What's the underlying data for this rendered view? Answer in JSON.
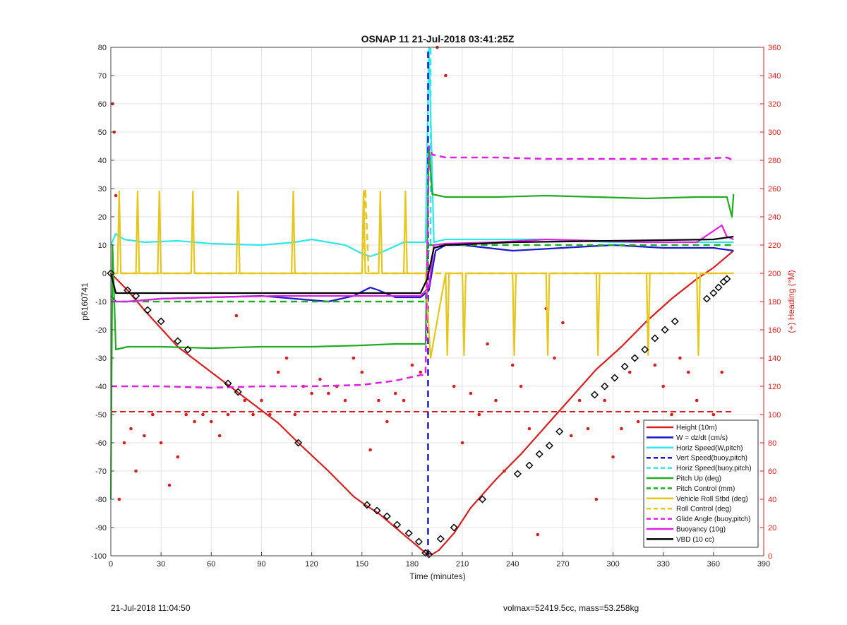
{
  "chart_data": {
    "type": "line",
    "title": "OSNAP 11 21-Jul-2018 03:41:25Z",
    "xlabel": "Time (minutes)",
    "ylabel": "p6160741",
    "y2label": "(+) Heading (°M)",
    "xlim": [
      0,
      390
    ],
    "ylim": [
      -100,
      80
    ],
    "y2lim": [
      0,
      360
    ],
    "xticks": [
      0,
      30,
      60,
      90,
      120,
      150,
      180,
      210,
      240,
      270,
      300,
      330,
      360,
      390
    ],
    "yticks": [
      80,
      70,
      60,
      50,
      40,
      30,
      20,
      10,
      0,
      -10,
      -20,
      -30,
      -40,
      -50,
      -60,
      -70,
      -80,
      -90,
      -100
    ],
    "y2ticks": [
      360,
      340,
      320,
      300,
      280,
      260,
      240,
      220,
      200,
      180,
      160,
      140,
      120,
      100,
      80,
      60,
      40,
      20,
      0
    ],
    "grid": true,
    "legend_position": "bottom-right",
    "colors": {
      "red": "#d62020",
      "blue": "#1a1acc",
      "cyan": "#2ee8e8",
      "green": "#22aa22",
      "yellow": "#e6c619",
      "magenta": "#e020e0",
      "black": "#000000",
      "axis_right": "#d62020",
      "grid": "#e2e2e2"
    },
    "series": [
      {
        "name": "Height (10m)",
        "color": "#d62020",
        "style": "solid",
        "x": [
          0,
          10,
          20,
          40,
          60,
          80,
          100,
          112,
          130,
          145,
          152,
          160,
          170,
          180,
          188,
          192,
          196,
          205,
          215,
          230,
          245,
          260,
          275,
          290,
          305,
          320,
          335,
          350,
          360,
          368,
          372
        ],
        "y": [
          0,
          -6,
          -13,
          -26,
          -35,
          -44,
          -53,
          -60,
          -70,
          -79,
          -82,
          -85,
          -90,
          -95,
          -99,
          -99.5,
          -98,
          -92,
          -83,
          -73,
          -64,
          -54,
          -44,
          -34,
          -26,
          -17,
          -9,
          -2,
          2,
          6,
          8
        ]
      },
      {
        "name": "W = dz/dt (cm/s)",
        "color": "#1a1acc",
        "style": "solid",
        "x": [
          0,
          3,
          10,
          30,
          60,
          90,
          110,
          130,
          145,
          155,
          160,
          170,
          185,
          190,
          194,
          200,
          210,
          240,
          270,
          300,
          330,
          360,
          372
        ],
        "y": [
          -8,
          -10,
          -10,
          -9,
          -8.5,
          -8,
          -9,
          -10,
          -8,
          -5,
          -6,
          -8.5,
          -8.5,
          -6,
          8,
          10,
          10,
          8,
          9,
          10,
          9,
          9,
          8
        ]
      },
      {
        "name": "Horiz Speed(W,pitch)",
        "color": "#2ee8e8",
        "style": "solid",
        "x": [
          0,
          3,
          8,
          20,
          40,
          60,
          90,
          110,
          120,
          140,
          150,
          155,
          160,
          175,
          188,
          190,
          193,
          200,
          230,
          260,
          300,
          330,
          360,
          372
        ],
        "y": [
          10,
          14,
          12,
          11,
          11.5,
          10.5,
          10,
          11,
          12,
          10,
          7,
          6,
          7,
          11,
          11,
          80,
          11,
          12,
          12,
          12,
          11,
          11,
          11,
          11
        ]
      },
      {
        "name": "Vert Speed(buoy,pitch)",
        "color": "#1a1acc",
        "style": "dashed",
        "x": [
          189.5,
          189.5
        ],
        "y": [
          -100,
          80
        ]
      },
      {
        "name": "Horiz Speed(buoy,pitch)",
        "color": "#2ee8e8",
        "style": "dashed",
        "x": [
          191,
          191
        ],
        "y": [
          10,
          80
        ]
      },
      {
        "name": "Pitch Up (deg)",
        "color": "#22aa22",
        "style": "solid",
        "x": [
          0,
          1,
          3,
          10,
          30,
          60,
          90,
          120,
          150,
          170,
          185,
          188,
          190,
          192,
          200,
          230,
          260,
          290,
          320,
          350,
          368,
          371,
          372
        ],
        "y": [
          -80,
          10,
          -27,
          -26,
          -26,
          -26.5,
          -26,
          -26,
          -25.5,
          -25,
          -25,
          -25,
          45,
          28,
          27,
          27,
          27.5,
          27,
          26.5,
          27,
          27,
          20,
          28
        ]
      },
      {
        "name": "Pitch Control (mm)",
        "color": "#22aa22",
        "style": "dashed",
        "x": [
          0,
          30,
          60,
          120,
          188,
          190,
          230,
          300,
          372
        ],
        "y": [
          -10,
          -10,
          -10,
          -10,
          -10,
          10,
          10,
          10,
          10
        ]
      },
      {
        "name": "Vehicle Roll Stbd (deg)",
        "color": "#e6c619",
        "style": "solid",
        "x": [
          0,
          4,
          5,
          6,
          15,
          16,
          17,
          28,
          29,
          30,
          48,
          49,
          50,
          75,
          76,
          77,
          108,
          109,
          110,
          150,
          151,
          152,
          160,
          161,
          162,
          175,
          176,
          177,
          188,
          191,
          200,
          201,
          202,
          210,
          211,
          212,
          240,
          241,
          242,
          260,
          261,
          262,
          290,
          291,
          292,
          320,
          321,
          322,
          350,
          351,
          352,
          368,
          372
        ],
        "y": [
          0,
          0,
          29,
          0,
          0,
          29,
          0,
          0,
          29,
          0,
          0,
          29,
          0,
          0,
          29,
          0,
          0,
          29,
          0,
          0,
          29,
          0,
          0,
          29,
          0,
          0,
          29,
          0,
          0,
          -30,
          0,
          -29,
          0,
          0,
          -29,
          0,
          0,
          -29,
          0,
          0,
          -29,
          0,
          0,
          -29,
          0,
          0,
          -29,
          0,
          0,
          -29,
          0,
          0,
          0
        ]
      },
      {
        "name": "Roll Control (deg)",
        "color": "#e6c619",
        "style": "dashed",
        "x": [
          0,
          150,
          152,
          154,
          188,
          192,
          372
        ],
        "y": [
          0,
          0,
          30,
          0,
          0,
          0,
          0
        ]
      },
      {
        "name": "Glide Angle (buoy,pitch)",
        "color": "#e020e0",
        "style": "dashed",
        "x": [
          0,
          30,
          60,
          90,
          120,
          150,
          170,
          185,
          188,
          190,
          192,
          200,
          230,
          260,
          290,
          320,
          350,
          368,
          372
        ],
        "y": [
          -40,
          -40,
          -40.5,
          -40,
          -40,
          -39.5,
          -38,
          -36,
          -36,
          45,
          42,
          41,
          41,
          40.5,
          40.5,
          40.5,
          40.5,
          41,
          40
        ]
      },
      {
        "name": "Buoyancy (10g)",
        "color": "#e020e0",
        "style": "solid",
        "x": [
          0,
          10,
          30,
          60,
          100,
          150,
          185,
          190,
          193,
          200,
          230,
          260,
          290,
          320,
          350,
          365,
          368,
          372
        ],
        "y": [
          -10,
          -10,
          -9,
          -8.5,
          -8,
          -8,
          -8,
          -5,
          10,
          10.5,
          11,
          12,
          11.5,
          11,
          11,
          17,
          13,
          12
        ]
      },
      {
        "name": "VBD (10 cc)",
        "color": "#000000",
        "style": "solid",
        "x": [
          0,
          3,
          185,
          189,
          193,
          200,
          240,
          300,
          360,
          372
        ],
        "y": [
          0,
          -7,
          -7,
          -2,
          9,
          10,
          11,
          11.5,
          12,
          13
        ]
      }
    ],
    "heading_points": {
      "name": "(+) Heading (°M)",
      "color": "#d62020",
      "axis": "right",
      "x": [
        1,
        2,
        3,
        5,
        8,
        12,
        15,
        20,
        25,
        30,
        35,
        40,
        45,
        50,
        55,
        60,
        65,
        70,
        75,
        80,
        85,
        90,
        95,
        100,
        105,
        110,
        115,
        120,
        125,
        130,
        135,
        140,
        145,
        150,
        155,
        160,
        165,
        170,
        175,
        180,
        185,
        195,
        200,
        205,
        210,
        215,
        220,
        225,
        230,
        235,
        240,
        245,
        250,
        255,
        260,
        265,
        270,
        275,
        280,
        285,
        290,
        295,
        300,
        305,
        310,
        315,
        320,
        325,
        330,
        335,
        340,
        345,
        350,
        355,
        360,
        365
      ],
      "y": [
        320,
        300,
        255,
        40,
        80,
        90,
        60,
        85,
        100,
        80,
        50,
        70,
        100,
        95,
        100,
        95,
        85,
        100,
        170,
        110,
        100,
        110,
        100,
        130,
        140,
        100,
        120,
        115,
        125,
        115,
        120,
        110,
        140,
        130,
        75,
        110,
        95,
        115,
        110,
        135,
        130,
        360,
        340,
        120,
        80,
        115,
        100,
        150,
        110,
        60,
        135,
        120,
        90,
        15,
        175,
        140,
        165,
        85,
        110,
        90,
        40,
        110,
        70,
        90,
        130,
        95,
        65,
        135,
        120,
        100,
        140,
        130,
        110,
        95,
        100,
        130
      ]
    },
    "marked_points": {
      "name": "Height (10m)",
      "x": [
        0,
        10,
        15,
        22,
        30,
        40,
        46,
        70,
        76,
        112,
        153,
        159,
        165,
        171,
        178,
        184,
        188,
        190,
        197,
        205,
        222,
        243,
        250,
        256,
        262,
        268,
        289,
        295,
        301,
        307,
        313,
        319,
        325,
        331,
        337,
        356,
        360,
        363,
        366,
        368
      ],
      "y": [
        0,
        -6,
        -8,
        -13,
        -17,
        -24,
        -27,
        -39,
        -42,
        -60,
        -82,
        -84,
        -86,
        -89,
        -92,
        -95,
        -99,
        -99.5,
        -94,
        -90,
        -80,
        -71,
        -68,
        -64,
        -61,
        -56,
        -43,
        -40,
        -37,
        -33,
        -30,
        -27,
        -23,
        -20,
        -17,
        -9,
        -7,
        -5,
        -3,
        -2
      ]
    },
    "reference_line": {
      "y2": 102,
      "color": "#d62020",
      "style": "dashed"
    }
  },
  "footer": {
    "left": "21-Jul-2018 11:04:50",
    "right": "volmax=52419.5cc, mass=53.258kg"
  }
}
